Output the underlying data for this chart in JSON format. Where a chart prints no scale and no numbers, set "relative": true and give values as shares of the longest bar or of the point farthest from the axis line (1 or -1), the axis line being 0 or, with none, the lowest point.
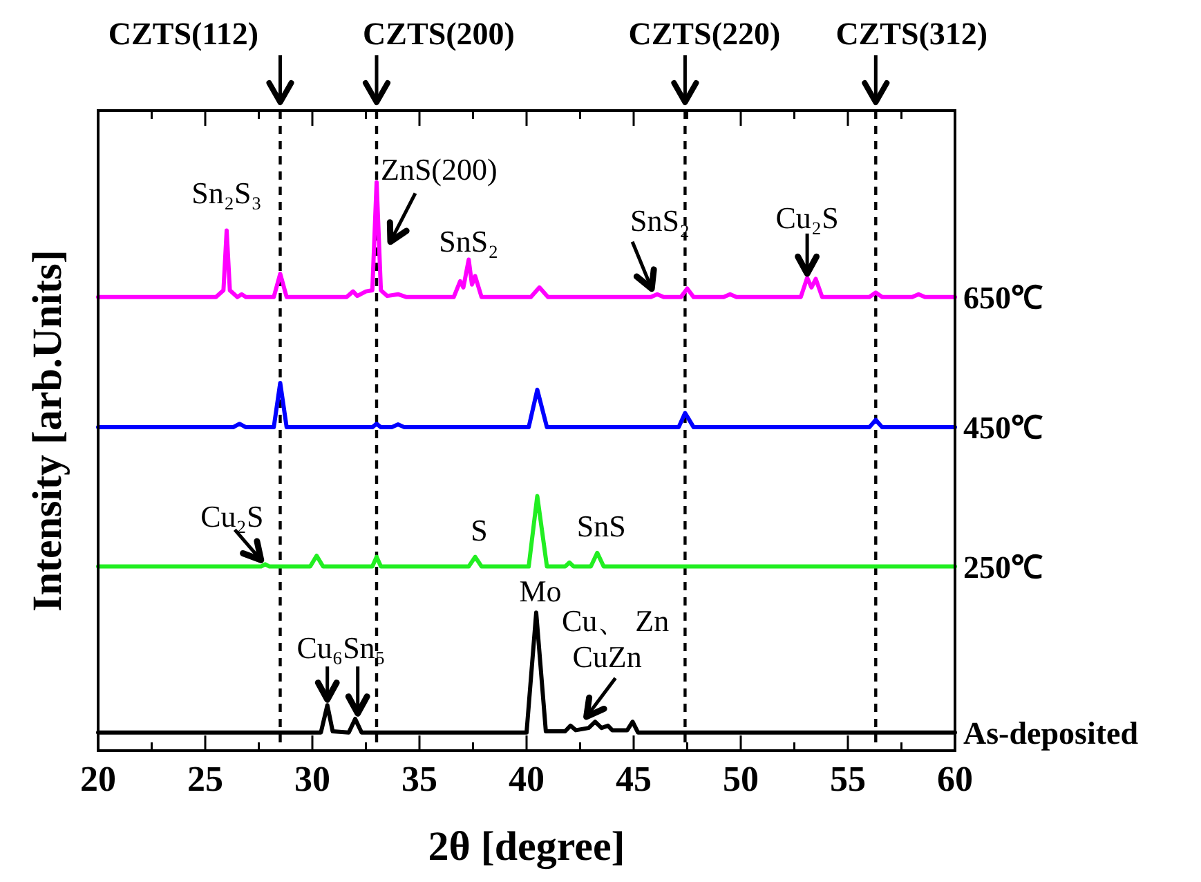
{
  "chart_data": {
    "type": "line",
    "relative": true,
    "xlabel": "2θ [degree]",
    "ylabel": "Intensity [arb.Units]",
    "xlim": [
      20,
      60
    ],
    "xticks": [
      20,
      {
        "value": 22.5,
        "label": null
      },
      25,
      {
        "value": 27.5,
        "label": null
      },
      30,
      {
        "value": 32.5,
        "label": null
      },
      35,
      {
        "value": 37.5,
        "label": null
      },
      40,
      {
        "value": 42.5,
        "label": null
      },
      45,
      {
        "value": 47.5,
        "label": null
      },
      50,
      {
        "value": 52.5,
        "label": null
      },
      55,
      {
        "value": 57.5,
        "label": null
      },
      60
    ],
    "series": [
      {
        "name": "650℃",
        "color": "#ff00ff",
        "x": [
          20,
          25.5,
          25.85,
          26.0,
          26.15,
          26.5,
          26.7,
          26.9,
          28.2,
          28.5,
          28.8,
          31.6,
          31.9,
          32.1,
          32.5,
          32.8,
          33.0,
          33.2,
          33.5,
          34.0,
          34.4,
          36.6,
          36.9,
          37.05,
          37.3,
          37.45,
          37.6,
          37.9,
          40.2,
          40.6,
          41.0,
          45.8,
          46.1,
          46.4,
          47.2,
          47.5,
          47.8,
          49.2,
          49.5,
          49.8,
          52.8,
          53.1,
          53.3,
          53.5,
          53.8,
          56.0,
          56.3,
          56.6,
          58.0,
          58.3,
          58.6,
          60
        ],
        "values": [
          0.798,
          0.798,
          0.81,
          0.915,
          0.81,
          0.798,
          0.803,
          0.798,
          0.798,
          0.839,
          0.798,
          0.798,
          0.808,
          0.8,
          0.808,
          0.81,
          1.0,
          0.81,
          0.8,
          0.803,
          0.798,
          0.798,
          0.826,
          0.815,
          0.864,
          0.82,
          0.835,
          0.798,
          0.798,
          0.815,
          0.798,
          0.798,
          0.803,
          0.798,
          0.798,
          0.813,
          0.798,
          0.798,
          0.803,
          0.798,
          0.798,
          0.832,
          0.815,
          0.83,
          0.798,
          0.798,
          0.806,
          0.798,
          0.798,
          0.803,
          0.798,
          0.798
        ]
      },
      {
        "name": "450℃",
        "color": "#0000ff",
        "x": [
          20,
          26.3,
          26.6,
          26.9,
          28.2,
          28.5,
          28.8,
          32.8,
          33.0,
          33.2,
          33.7,
          34.0,
          34.3,
          40.1,
          40.5,
          40.95,
          47.1,
          47.4,
          47.8,
          56.0,
          56.3,
          56.6,
          60
        ],
        "values": [
          0.569,
          0.569,
          0.575,
          0.569,
          0.569,
          0.647,
          0.569,
          0.569,
          0.575,
          0.569,
          0.569,
          0.574,
          0.569,
          0.569,
          0.635,
          0.569,
          0.569,
          0.594,
          0.569,
          0.569,
          0.582,
          0.569,
          0.569
        ]
      },
      {
        "name": "250℃",
        "color": "#22ee22",
        "x": [
          20,
          27.6,
          27.8,
          28.0,
          29.9,
          30.2,
          30.5,
          32.8,
          33.0,
          33.2,
          37.3,
          37.6,
          37.9,
          40.1,
          40.5,
          40.95,
          41.8,
          42.0,
          42.2,
          43.0,
          43.3,
          43.6,
          60
        ],
        "values": [
          0.324,
          0.324,
          0.328,
          0.324,
          0.324,
          0.343,
          0.324,
          0.324,
          0.341,
          0.324,
          0.324,
          0.341,
          0.324,
          0.324,
          0.448,
          0.324,
          0.324,
          0.331,
          0.324,
          0.324,
          0.348,
          0.324,
          0.324
        ]
      },
      {
        "name": "As-deposited",
        "color": "#000000",
        "x": [
          20,
          30.4,
          30.7,
          30.95,
          31.7,
          32.0,
          32.3,
          40.0,
          40.45,
          40.9,
          41.8,
          42.05,
          42.3,
          42.9,
          43.2,
          43.5,
          43.8,
          44.0,
          44.7,
          44.95,
          45.2,
          60
        ],
        "values": [
          0.032,
          0.032,
          0.08,
          0.034,
          0.032,
          0.056,
          0.032,
          0.032,
          0.243,
          0.034,
          0.034,
          0.044,
          0.036,
          0.04,
          0.051,
          0.04,
          0.044,
          0.036,
          0.036,
          0.051,
          0.032,
          0.032
        ]
      }
    ],
    "ref_lines": [
      {
        "axis": "x",
        "value": 28.5,
        "label": "CZTS(112)",
        "color": "#000000",
        "line_style": "dashed"
      },
      {
        "axis": "x",
        "value": 33.0,
        "label": "CZTS(200)",
        "color": "#000000",
        "line_style": "dashed"
      },
      {
        "axis": "x",
        "value": 47.4,
        "label": "CZTS(220)",
        "color": "#000000",
        "line_style": "dashed"
      },
      {
        "axis": "x",
        "value": 56.3,
        "label": "CZTS(312)",
        "color": "#000000",
        "line_style": "dashed"
      }
    ],
    "annotations": [
      {
        "text": "Sn₂S₃",
        "x": 26.0,
        "y": 0.915
      },
      {
        "text": "ZnS(200)",
        "x": 33.0,
        "y": 1.0
      },
      {
        "text": "SnS₂",
        "x": 37.3,
        "y": 0.864
      },
      {
        "text": "SnS₂",
        "x": 46.1,
        "y": 0.803
      },
      {
        "text": "Cu₂S",
        "x": 53.1,
        "y": 0.832
      },
      {
        "text": "Cu₂S",
        "x": 27.8,
        "y": 0.328
      },
      {
        "text": "S",
        "x": 37.6,
        "y": 0.341
      },
      {
        "text": "SnS",
        "x": 43.3,
        "y": 0.348
      },
      {
        "text": "Mo",
        "x": 40.45,
        "y": 0.243
      },
      {
        "text": "Cu、 Zn\nCuZn",
        "x": 42.6,
        "y": 0.045
      },
      {
        "text": "Cu₆Sn₅",
        "x": 30.7,
        "y": 0.08
      }
    ]
  }
}
